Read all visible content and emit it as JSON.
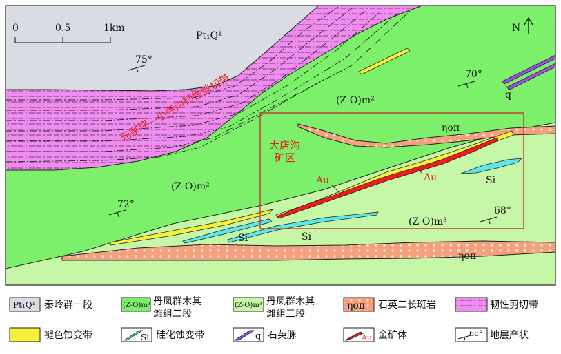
{
  "scale": {
    "ticks": [
      "0",
      "0.5",
      "1km"
    ]
  },
  "north": {
    "label": "N"
  },
  "units": {
    "pt1q1": "Pt₁Q¹",
    "zom2_a": "(Z-O)m²",
    "zom2_b": "(Z-O)m²",
    "zom3": "(Z-O)m³"
  },
  "dips": {
    "d75": "75°",
    "d70": "70°",
    "d72": "72°",
    "d68": "68°"
  },
  "map_labels": {
    "shear_zone": "元家坪—小寺沟韧性剪切带",
    "mine_line1": "大店沟",
    "mine_line2": "矿区",
    "au_1": "Au",
    "au_2": "Au",
    "si_1": "Si",
    "si_2": "Si",
    "si_3": "Si",
    "q": "q",
    "porphyry_1": "ηoπ",
    "porphyry_2": "ηoπ"
  },
  "legend": [
    {
      "symbol": "Pt₁Q¹",
      "text": "秦岭群一段"
    },
    {
      "symbol": "(Z-O)m²",
      "text_line1": "丹凤群木其",
      "text_line2": "滩组二段"
    },
    {
      "symbol": "(Z-O)m³",
      "text_line1": "丹凤群木其",
      "text_line2": "滩组三段"
    },
    {
      "symbol": "ηoπ",
      "text": "石英二长斑岩"
    },
    {
      "symbol": "",
      "text": "韧性剪切带"
    },
    {
      "symbol": "",
      "text": "褪色蚀变带"
    },
    {
      "symbol": "Si",
      "text": "硅化蚀变带"
    },
    {
      "symbol": "q",
      "text": "石英脉"
    },
    {
      "symbol": "Au",
      "text": "金矿体"
    },
    {
      "symbol": "68°",
      "text": "地层产状"
    }
  ],
  "colors": {
    "pt1q1": "#d9dde3",
    "m2": "#7cf06a",
    "m3": "#c6f7a6",
    "shear": "#f08cf0",
    "porphyry": "#f4a07c",
    "bleach": "#f6f03a",
    "si": "#5fe6e6",
    "quartz": "#a04ce6",
    "gold": "#ee1c1c",
    "frame": "#c0392b"
  }
}
